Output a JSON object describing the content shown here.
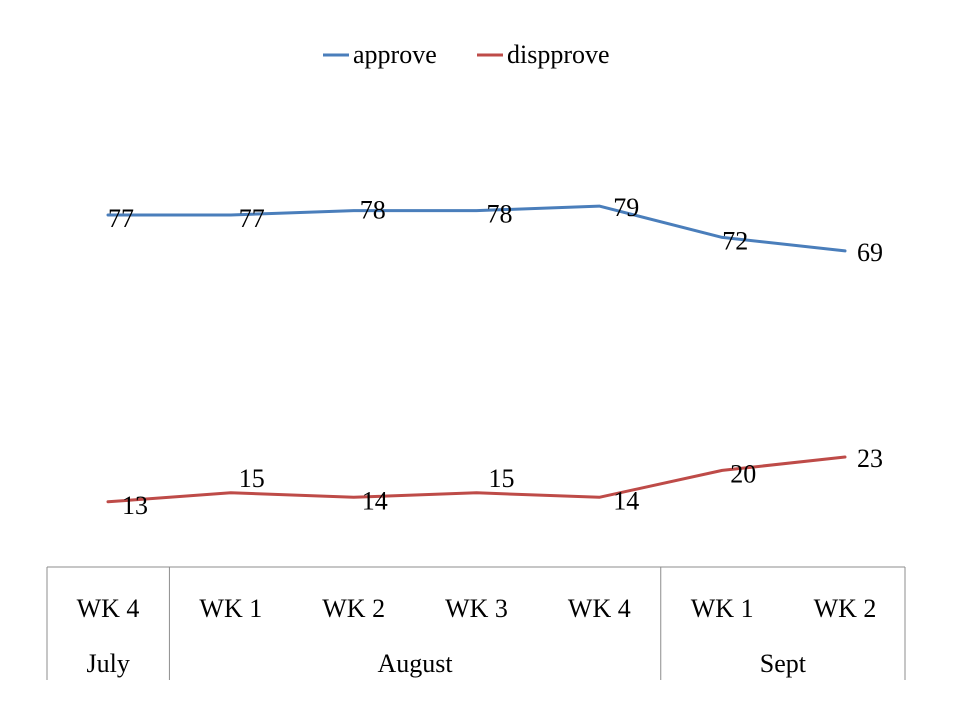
{
  "chart_data": {
    "type": "line",
    "title": "",
    "xlabel": "",
    "ylabel": "",
    "categories": [
      "WK 4",
      "WK 1",
      "WK 2",
      "WK 3",
      "WK 4",
      "WK 1",
      "WK 2"
    ],
    "groups": [
      {
        "label": "July",
        "span": 1
      },
      {
        "label": "August",
        "span": 4
      },
      {
        "label": "Sept",
        "span": 2
      }
    ],
    "series": [
      {
        "name": "approve",
        "color": "#4a7ebb",
        "values": [
          77,
          77,
          78,
          78,
          79,
          72,
          69
        ]
      },
      {
        "name": "dispprove",
        "color": "#be4b48",
        "values": [
          13,
          15,
          14,
          15,
          14,
          20,
          23
        ]
      }
    ],
    "ylim": [
      0,
      100
    ],
    "grid": false,
    "legend_position": "top"
  }
}
